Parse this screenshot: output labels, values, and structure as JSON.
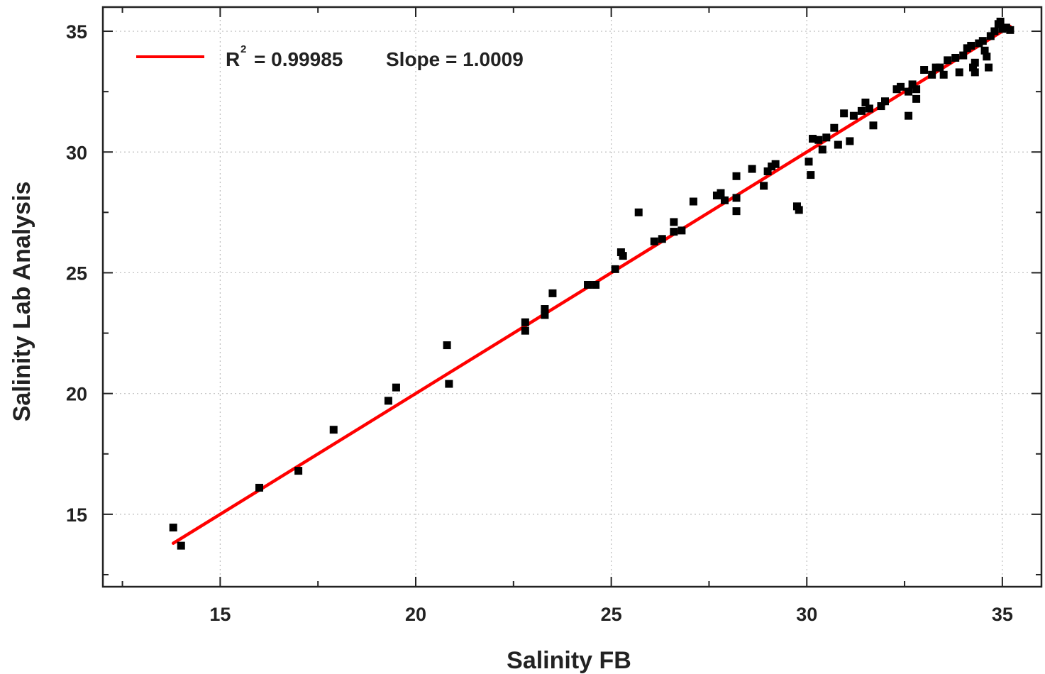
{
  "chart_data": {
    "type": "scatter",
    "title": "",
    "xlabel": "Salinity FB",
    "ylabel": "Salinity Lab Analysis",
    "xlim": [
      12.0,
      36.0
    ],
    "ylim": [
      12.0,
      36.0
    ],
    "x_ticks": [
      15,
      20,
      25,
      30,
      35
    ],
    "y_ticks": [
      15,
      20,
      25,
      30,
      35
    ],
    "grid": true,
    "legend_position": "top-left",
    "legend": {
      "r_symbol": "R",
      "r_superscript": "2",
      "r_text": "= 0.99985",
      "slope_text": "Slope = 1.0009"
    },
    "fit_line": {
      "x": [
        13.8,
        35.2
      ],
      "y": [
        13.8,
        35.2
      ],
      "color": "#ff0000"
    },
    "point_color": "#000000",
    "points": [
      [
        13.8,
        14.45
      ],
      [
        14.0,
        13.7
      ],
      [
        16.0,
        16.1
      ],
      [
        17.0,
        16.8
      ],
      [
        17.9,
        18.5
      ],
      [
        19.3,
        19.7
      ],
      [
        19.5,
        20.25
      ],
      [
        20.8,
        22.0
      ],
      [
        20.85,
        20.4
      ],
      [
        22.8,
        22.6
      ],
      [
        22.8,
        22.95
      ],
      [
        23.3,
        23.25
      ],
      [
        23.3,
        23.5
      ],
      [
        23.5,
        24.15
      ],
      [
        24.4,
        24.5
      ],
      [
        24.6,
        24.5
      ],
      [
        25.1,
        25.15
      ],
      [
        25.25,
        25.85
      ],
      [
        25.3,
        25.7
      ],
      [
        25.7,
        27.5
      ],
      [
        26.1,
        26.3
      ],
      [
        26.3,
        26.4
      ],
      [
        26.6,
        26.7
      ],
      [
        26.6,
        27.1
      ],
      [
        26.8,
        26.75
      ],
      [
        27.1,
        27.95
      ],
      [
        27.7,
        28.2
      ],
      [
        27.8,
        28.3
      ],
      [
        27.9,
        28.0
      ],
      [
        28.2,
        27.55
      ],
      [
        28.2,
        28.1
      ],
      [
        28.2,
        29.0
      ],
      [
        28.6,
        29.3
      ],
      [
        28.9,
        28.6
      ],
      [
        29.0,
        29.2
      ],
      [
        29.1,
        29.4
      ],
      [
        29.2,
        29.5
      ],
      [
        29.75,
        27.75
      ],
      [
        29.8,
        27.6
      ],
      [
        30.05,
        29.6
      ],
      [
        30.1,
        29.05
      ],
      [
        30.15,
        30.55
      ],
      [
        30.3,
        30.5
      ],
      [
        30.4,
        30.1
      ],
      [
        30.5,
        30.6
      ],
      [
        30.7,
        31.0
      ],
      [
        30.8,
        30.3
      ],
      [
        30.95,
        31.6
      ],
      [
        31.1,
        30.45
      ],
      [
        31.2,
        31.5
      ],
      [
        31.4,
        31.7
      ],
      [
        31.5,
        32.05
      ],
      [
        31.6,
        31.8
      ],
      [
        31.7,
        31.1
      ],
      [
        31.9,
        31.9
      ],
      [
        32.0,
        32.1
      ],
      [
        32.3,
        32.6
      ],
      [
        32.4,
        32.7
      ],
      [
        32.6,
        31.5
      ],
      [
        32.6,
        32.5
      ],
      [
        32.7,
        32.8
      ],
      [
        32.8,
        32.2
      ],
      [
        32.8,
        32.6
      ],
      [
        33.0,
        33.4
      ],
      [
        33.2,
        33.2
      ],
      [
        33.3,
        33.5
      ],
      [
        33.4,
        33.5
      ],
      [
        33.5,
        33.2
      ],
      [
        33.6,
        33.8
      ],
      [
        33.8,
        33.9
      ],
      [
        33.9,
        33.3
      ],
      [
        34.0,
        34.0
      ],
      [
        34.1,
        34.3
      ],
      [
        34.2,
        34.4
      ],
      [
        34.25,
        33.5
      ],
      [
        34.3,
        33.3
      ],
      [
        34.3,
        33.7
      ],
      [
        34.4,
        34.5
      ],
      [
        34.5,
        34.6
      ],
      [
        34.55,
        34.2
      ],
      [
        34.6,
        33.95
      ],
      [
        34.65,
        33.5
      ],
      [
        34.7,
        34.8
      ],
      [
        34.8,
        35.0
      ],
      [
        34.9,
        35.3
      ],
      [
        34.95,
        35.4
      ],
      [
        35.0,
        35.1
      ],
      [
        35.1,
        35.15
      ],
      [
        35.2,
        35.05
      ]
    ]
  }
}
